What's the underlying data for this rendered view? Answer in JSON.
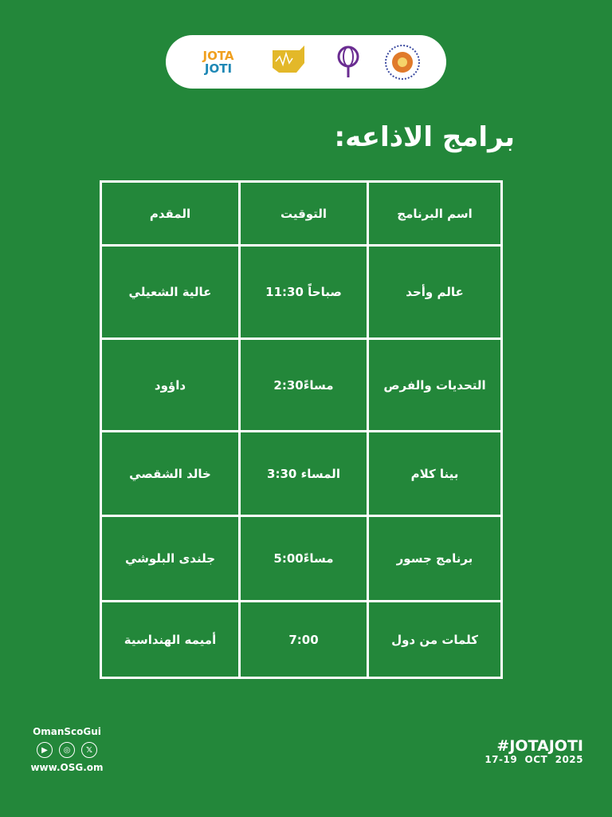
{
  "logos": {
    "jota": "JOTA",
    "joti": "JOTI",
    "jota_joti_small": "jota joti"
  },
  "title": "برامج الاذاعه:",
  "table": {
    "headers": [
      "اسم البرنامج",
      "التوقيت",
      "المقدم"
    ],
    "rows": [
      [
        "عالم وأحد",
        "صباحاً 11:30",
        "عالية الشعيلي"
      ],
      [
        "التحديات والفرص",
        "مساءً2:30",
        "داؤود"
      ],
      [
        "بينا كلام",
        "المساء 3:30",
        "خالد الشقصي"
      ],
      [
        "برنامج جسور",
        "مساءً5:00",
        "جلندى البلوشي"
      ],
      [
        "كلمات من دول",
        "7:00",
        "أميمه الهنداسية"
      ]
    ]
  },
  "footer": {
    "handle": "OmanScoGui",
    "social": [
      "youtube-icon",
      "instagram-icon",
      "x-icon"
    ],
    "website": "www.OSG.om",
    "hashtag": "#JOTAJOTI",
    "dates": "17-19  OCT  2025"
  },
  "colors": {
    "background": "#23873a",
    "text": "#ffffff"
  }
}
